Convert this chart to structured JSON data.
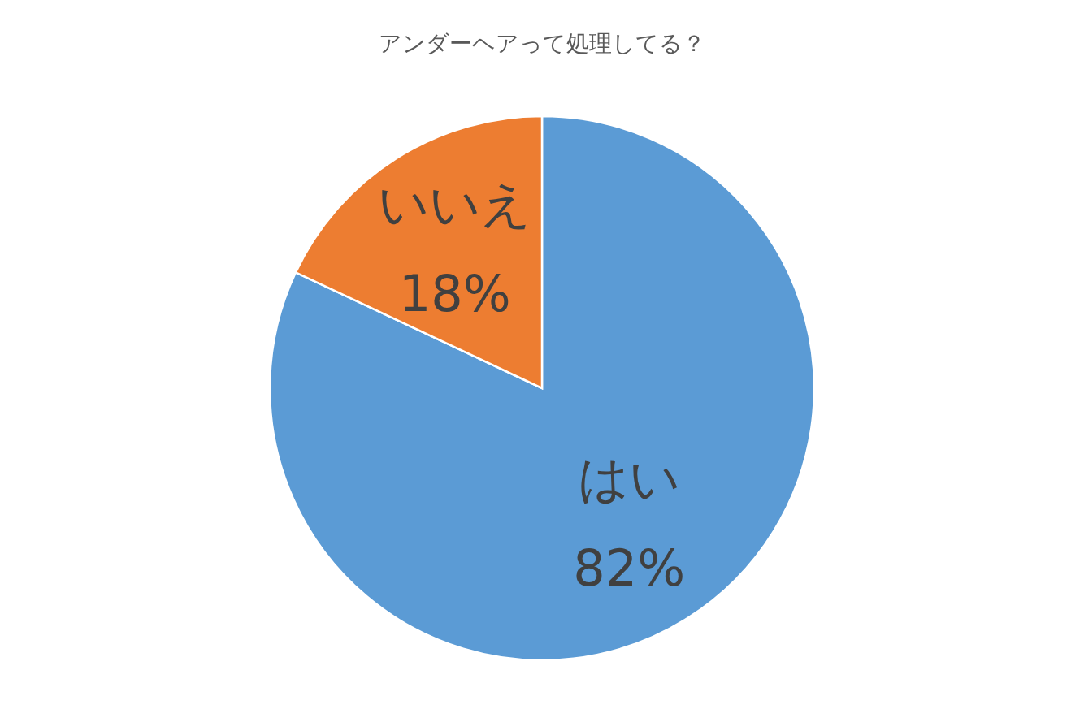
{
  "chart_data": {
    "type": "pie",
    "title": "アンダーヘアって処理してる？",
    "categories": [
      "はい",
      "いいえ"
    ],
    "values": [
      82,
      18
    ],
    "colors": [
      "#5b9bd5",
      "#ed7d31"
    ],
    "value_labels": [
      "82%",
      "18%"
    ]
  }
}
